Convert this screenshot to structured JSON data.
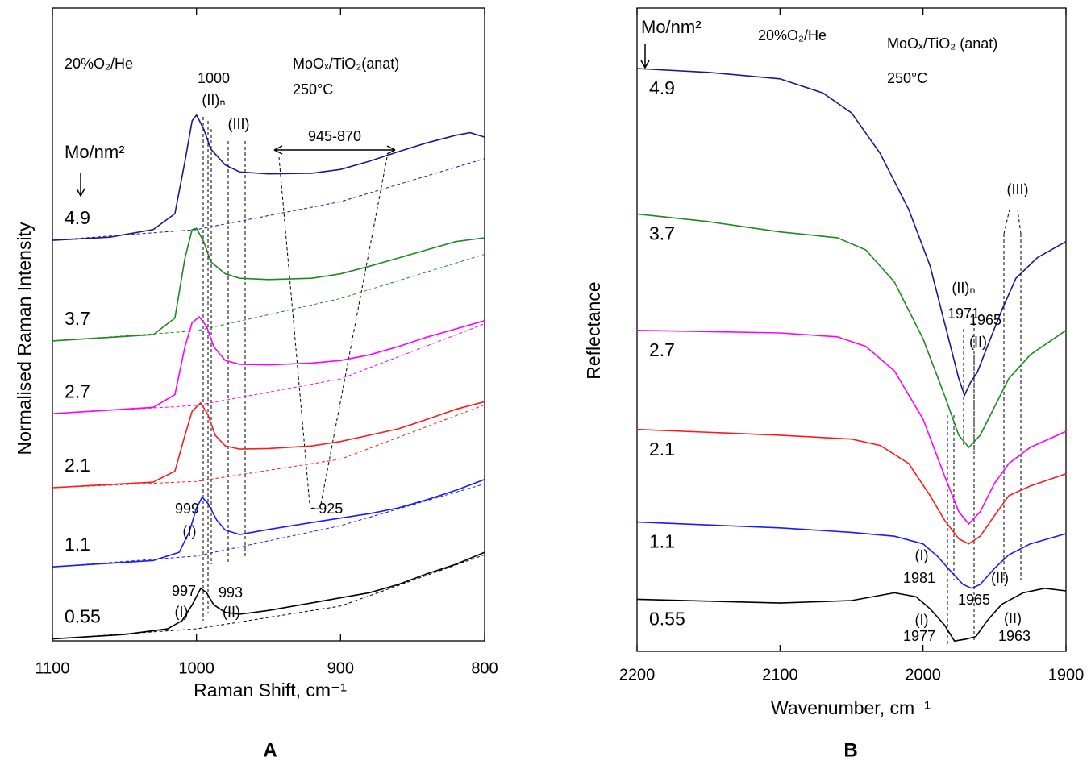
{
  "chart_data": [
    {
      "type": "line",
      "label": "A",
      "xlabel": "Raman Shift, cm⁻¹",
      "ylabel": "Normalised Raman Intensity",
      "legend_title": "Mo/nm²",
      "xlim": [
        1100,
        800
      ],
      "ylim": [
        0,
        100
      ],
      "xticks": [
        1100,
        1000,
        900,
        800
      ],
      "series": [
        {
          "name": "4.9",
          "color": "#1a1a8c",
          "x": [
            1100,
            1060,
            1030,
            1015,
            1008,
            1003,
            1000,
            995,
            990,
            980,
            970,
            950,
            920,
            900,
            880,
            860,
            840,
            820,
            810,
            800
          ],
          "values": [
            63.3,
            63.8,
            65.0,
            67.5,
            75.8,
            82.2,
            83.1,
            80.9,
            77.7,
            75.2,
            74.1,
            73.8,
            73.9,
            74.5,
            75.8,
            77.3,
            78.7,
            79.9,
            80.3,
            79.6
          ]
        },
        {
          "color": "#1a1a8c",
          "dashed": true,
          "x": [
            1100,
            1000,
            900,
            800
          ],
          "values": [
            63.3,
            65.0,
            69.4,
            76.2
          ]
        },
        {
          "name": "3.7",
          "color": "#1e8a1e",
          "x": [
            1100,
            1030,
            1015,
            1008,
            1003,
            1000,
            995,
            990,
            980,
            970,
            950,
            920,
            900,
            880,
            860,
            840,
            820,
            800
          ],
          "values": [
            47.4,
            48.4,
            51.0,
            60.5,
            65.0,
            65.2,
            63.1,
            59.9,
            58.0,
            57.3,
            57.1,
            57.3,
            58.0,
            59.2,
            60.5,
            61.8,
            63.1,
            63.7
          ]
        },
        {
          "color": "#1e8a1e",
          "dashed": true,
          "x": [
            1100,
            1000,
            900,
            800
          ],
          "values": [
            47.4,
            49.0,
            54.1,
            61.1
          ]
        },
        {
          "name": "2.7",
          "color": "#ff00ff",
          "x": [
            1100,
            1030,
            1015,
            1008,
            1003,
            998,
            993,
            988,
            980,
            970,
            950,
            920,
            900,
            880,
            860,
            840,
            820,
            800
          ],
          "values": [
            35.9,
            36.9,
            38.9,
            46.5,
            50.3,
            51.2,
            49.7,
            46.5,
            44.3,
            43.7,
            43.6,
            43.9,
            44.3,
            45.2,
            46.5,
            48.0,
            49.3,
            50.6
          ]
        },
        {
          "color": "#ff00ff",
          "dashed": true,
          "x": [
            1100,
            1000,
            900,
            800
          ],
          "values": [
            35.9,
            37.2,
            41.4,
            50.1
          ]
        },
        {
          "name": "2.1",
          "color": "#ff1a1a",
          "x": [
            1100,
            1030,
            1015,
            1008,
            1003,
            997,
            992,
            987,
            980,
            970,
            950,
            920,
            900,
            880,
            860,
            840,
            820,
            800
          ],
          "values": [
            24.2,
            25.1,
            26.8,
            32.5,
            36.3,
            37.6,
            35.7,
            32.5,
            30.8,
            30.3,
            30.4,
            30.8,
            31.5,
            32.5,
            33.5,
            35.0,
            36.6,
            37.8
          ]
        },
        {
          "color": "#ff1a1a",
          "dashed": true,
          "x": [
            1100,
            1000,
            900,
            800
          ],
          "values": [
            24.2,
            25.2,
            28.7,
            37.3
          ]
        },
        {
          "name": "1.1",
          "color": "#1a1aff",
          "x": [
            1100,
            1030,
            1012,
            1005,
            1000,
            996,
            992,
            986,
            980,
            970,
            950,
            920,
            900,
            880,
            860,
            840,
            820,
            800
          ],
          "values": [
            11.7,
            12.7,
            14.0,
            17.2,
            21.0,
            22.7,
            21.7,
            19.1,
            17.5,
            16.8,
            17.6,
            18.7,
            19.4,
            20.1,
            21.0,
            22.3,
            23.8,
            25.5
          ]
        },
        {
          "color": "#1a1aff",
          "dashed": true,
          "x": [
            1100,
            1000,
            900,
            800
          ],
          "values": [
            11.7,
            13.4,
            18.2,
            24.8
          ]
        },
        {
          "name": "0.55",
          "color": "#000000",
          "x": [
            1100,
            1050,
            1020,
            1010,
            1003,
            997,
            993,
            988,
            980,
            970,
            950,
            920,
            900,
            880,
            860,
            840,
            820,
            800
          ],
          "values": [
            0.3,
            1.0,
            1.9,
            3.2,
            5.7,
            8.3,
            7.6,
            5.7,
            4.5,
            4.2,
            4.8,
            6.0,
            6.8,
            7.6,
            8.9,
            10.6,
            12.1,
            14.0
          ]
        },
        {
          "color": "#000000",
          "dashed": true,
          "x": [
            1100,
            1000,
            900,
            800
          ],
          "values": [
            0.3,
            1.9,
            5.5,
            13.6
          ]
        }
      ],
      "annotations": [
        {
          "text": "20%O₂/He",
          "color": "#000000"
        },
        {
          "text": "1000",
          "color": "#1a1a8c"
        },
        {
          "text": "(II)ₙ",
          "color": "#1a1a8c"
        },
        {
          "text": "MoOₓ/TiO₂(anat)",
          "color": "#000000"
        },
        {
          "text": "250°C",
          "color": "#000000"
        },
        {
          "text": "(III)",
          "color": "#000000"
        },
        {
          "text": "945-870",
          "color": "#000000"
        },
        {
          "text": "999",
          "color": "#1a1aff"
        },
        {
          "text": "(I)",
          "color": "#1a1aff"
        },
        {
          "text": "~925",
          "color": "#1a1aff"
        },
        {
          "text": "997",
          "color": "#000000"
        },
        {
          "text": "(I)",
          "color": "#000000"
        },
        {
          "text": "993",
          "color": "#000000"
        },
        {
          "text": "(II)",
          "color": "#000000"
        }
      ]
    },
    {
      "type": "line",
      "label": "B",
      "xlabel": "Wavenumber, cm⁻¹",
      "ylabel": "Reflectance",
      "legend_title": "Mo/nm²",
      "xlim": [
        2200,
        1900
      ],
      "ylim": [
        0,
        100
      ],
      "xticks": [
        2200,
        2100,
        2000,
        1900
      ],
      "series": [
        {
          "name": "4.9",
          "color": "#1a1a8c",
          "x": [
            2200,
            2150,
            2100,
            2070,
            2050,
            2030,
            2010,
            1995,
            1985,
            1975,
            1971,
            1967,
            1962,
            1955,
            1945,
            1935,
            1920,
            1900
          ],
          "values": [
            90.6,
            90.0,
            89.0,
            86.8,
            83.7,
            77.4,
            68.7,
            59.9,
            51.1,
            42.4,
            39.8,
            41.7,
            43.4,
            47.4,
            53.0,
            58.0,
            61.2,
            63.7
          ]
        },
        {
          "name": "3.7",
          "color": "#1e8a1e",
          "x": [
            2200,
            2150,
            2100,
            2060,
            2040,
            2020,
            2000,
            1985,
            1975,
            1968,
            1960,
            1950,
            1940,
            1925,
            1900
          ],
          "values": [
            68.0,
            66.8,
            65.2,
            64.3,
            62.4,
            57.4,
            48.6,
            39.8,
            33.6,
            31.7,
            33.6,
            38.0,
            42.4,
            46.1,
            49.9
          ]
        },
        {
          "name": "2.7",
          "color": "#ff00ff",
          "x": [
            2200,
            2100,
            2060,
            2040,
            2020,
            2000,
            1985,
            1975,
            1968,
            1960,
            1950,
            1940,
            1925,
            1900
          ],
          "values": [
            49.9,
            49.5,
            48.9,
            47.4,
            43.6,
            36.1,
            27.3,
            21.7,
            19.8,
            21.7,
            26.1,
            29.2,
            31.7,
            34.2
          ]
        },
        {
          "name": "2.1",
          "color": "#ff1a1a",
          "x": [
            2200,
            2100,
            2050,
            2030,
            2010,
            1995,
            1985,
            1975,
            1968,
            1960,
            1950,
            1940,
            1925,
            1900
          ],
          "values": [
            34.5,
            33.6,
            33.0,
            32.0,
            29.2,
            24.2,
            20.4,
            17.5,
            16.7,
            17.9,
            21.1,
            24.2,
            25.7,
            27.6
          ]
        },
        {
          "name": "1.1",
          "color": "#1a1aff",
          "x": [
            2200,
            2100,
            2050,
            2020,
            2000,
            1990,
            1980,
            1972,
            1966,
            1960,
            1950,
            1940,
            1925,
            1900
          ],
          "values": [
            20.1,
            19.2,
            18.5,
            17.9,
            16.7,
            14.8,
            12.3,
            10.4,
            9.8,
            10.4,
            12.9,
            15.0,
            16.7,
            18.3
          ]
        },
        {
          "name": "0.55",
          "color": "#000000",
          "x": [
            2200,
            2100,
            2050,
            2020,
            2005,
            1995,
            1985,
            1978,
            1970,
            1963,
            1955,
            1945,
            1930,
            1915,
            1900
          ],
          "values": [
            8.1,
            7.5,
            7.9,
            9.1,
            8.5,
            6.6,
            4.1,
            1.6,
            1.9,
            2.3,
            4.8,
            7.3,
            9.1,
            9.8,
            9.4
          ]
        }
      ],
      "annotations": [
        {
          "text": "20%O₂/He",
          "color": "#000000"
        },
        {
          "text": "MoOₓ/TiO₂ (anat)",
          "color": "#000000"
        },
        {
          "text": "250°C",
          "color": "#000000"
        },
        {
          "text": "(III)",
          "color": "#000000"
        },
        {
          "text": "(II)ₙ",
          "color": "#1a1a8c"
        },
        {
          "text": "1971",
          "color": "#1a1a8c"
        },
        {
          "text": "1965",
          "color": "#1a1a8c"
        },
        {
          "text": "(II)",
          "color": "#000000"
        },
        {
          "text": "(I)",
          "color": "#1a1aff"
        },
        {
          "text": "1981",
          "color": "#1a1aff"
        },
        {
          "text": "1965",
          "color": "#1a1aff"
        },
        {
          "text": "(II)",
          "color": "#1a1aff"
        },
        {
          "text": "(I)",
          "color": "#000000"
        },
        {
          "text": "1977",
          "color": "#000000"
        },
        {
          "text": "(II)",
          "color": "#000000"
        },
        {
          "text": "1963",
          "color": "#000000"
        }
      ]
    }
  ]
}
